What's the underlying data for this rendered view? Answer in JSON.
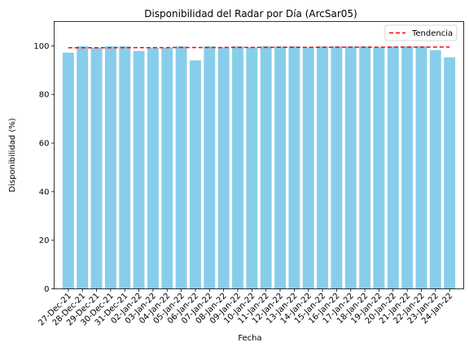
{
  "chart_data": {
    "type": "bar",
    "title": "Disponibilidad del Radar por Día (ArcSar05)",
    "xlabel": "Fecha",
    "ylabel": "Disponibilidad (%)",
    "ylim": [
      0,
      110
    ],
    "yticks": [
      0,
      20,
      40,
      60,
      80,
      100
    ],
    "grid": false,
    "legend_position": "top-right",
    "categories": [
      "27-Dec-21",
      "28-Dec-21",
      "29-Dec-21",
      "30-Dec-21",
      "31-Dec-21",
      "02-Jan-22",
      "03-Jan-22",
      "04-Jan-22",
      "05-Jan-22",
      "06-Jan-22",
      "07-Jan-22",
      "08-Jan-22",
      "09-Jan-22",
      "10-Jan-22",
      "11-Jan-22",
      "12-Jan-22",
      "13-Jan-22",
      "14-Jan-22",
      "15-Jan-22",
      "16-Jan-22",
      "17-Jan-22",
      "18-Jan-22",
      "19-Jan-22",
      "20-Jan-22",
      "21-Jan-22",
      "22-Jan-22",
      "23-Jan-22",
      "24-Jan-22"
    ],
    "values": [
      97.2,
      99.8,
      99.2,
      99.8,
      99.8,
      97.9,
      99.2,
      99.2,
      99.8,
      94.0,
      99.8,
      99.4,
      99.8,
      99.4,
      99.8,
      99.8,
      99.8,
      99.4,
      99.8,
      99.8,
      99.8,
      99.8,
      99.4,
      99.8,
      99.8,
      99.8,
      98.2,
      95.3
    ],
    "series": [
      {
        "name": "",
        "type": "bar",
        "color": "#87CEEB"
      },
      {
        "name": "Tendencia",
        "type": "line",
        "style": "dashed",
        "color": "#FF0000",
        "start": 99.2,
        "end": 99.5
      }
    ]
  }
}
